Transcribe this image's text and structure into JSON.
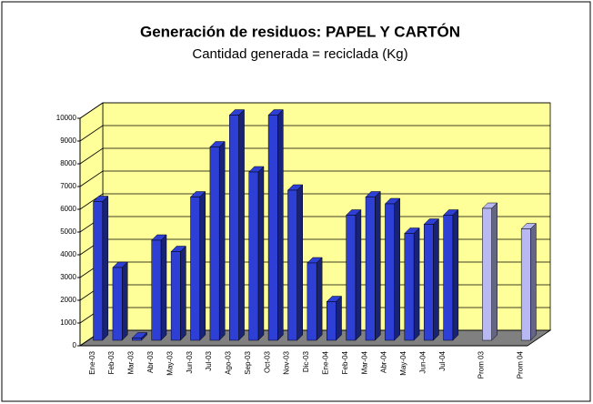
{
  "chart_data": {
    "type": "bar3d",
    "title": "Generación de residuos: PAPEL Y CARTÓN",
    "subtitle": "Cantidad generada = reciclada (Kg)",
    "categories": [
      "Ene-03",
      "Feb-03",
      "Mar-03",
      "Abr-03",
      "May-03",
      "Jun-03",
      "Jul-03",
      "Ago-03",
      "Sep-03",
      "Oct-03",
      "Nov-03",
      "Dic-03",
      "Ene-04",
      "Feb-04",
      "Mar-04",
      "Abr-04",
      "May-04",
      "Jun-04",
      "Jul-04",
      null,
      "Prom 03",
      null,
      "Prom 04"
    ],
    "values": [
      6100,
      3200,
      100,
      4400,
      3900,
      6300,
      8500,
      9900,
      7400,
      9900,
      6600,
      3400,
      1700,
      5500,
      6300,
      6000,
      4700,
      5100,
      5500,
      null,
      5800,
      null,
      4900
    ],
    "colors": [
      "#2e3fd6",
      "#2e3fd6",
      "#2e3fd6",
      "#2e3fd6",
      "#2e3fd6",
      "#2e3fd6",
      "#2e3fd6",
      "#2e3fd6",
      "#2e3fd6",
      "#2e3fd6",
      "#2e3fd6",
      "#2e3fd6",
      "#2e3fd6",
      "#2e3fd6",
      "#2e3fd6",
      "#2e3fd6",
      "#2e3fd6",
      "#2e3fd6",
      "#2e3fd6",
      "#2e3fd6",
      "#b8b8f2",
      "#2e3fd6",
      "#b8b8f2"
    ],
    "ylim": [
      0,
      10000
    ],
    "yticks": [
      0,
      1000,
      2000,
      3000,
      4000,
      5000,
      6000,
      7000,
      8000,
      9000,
      10000
    ],
    "grid": true
  }
}
